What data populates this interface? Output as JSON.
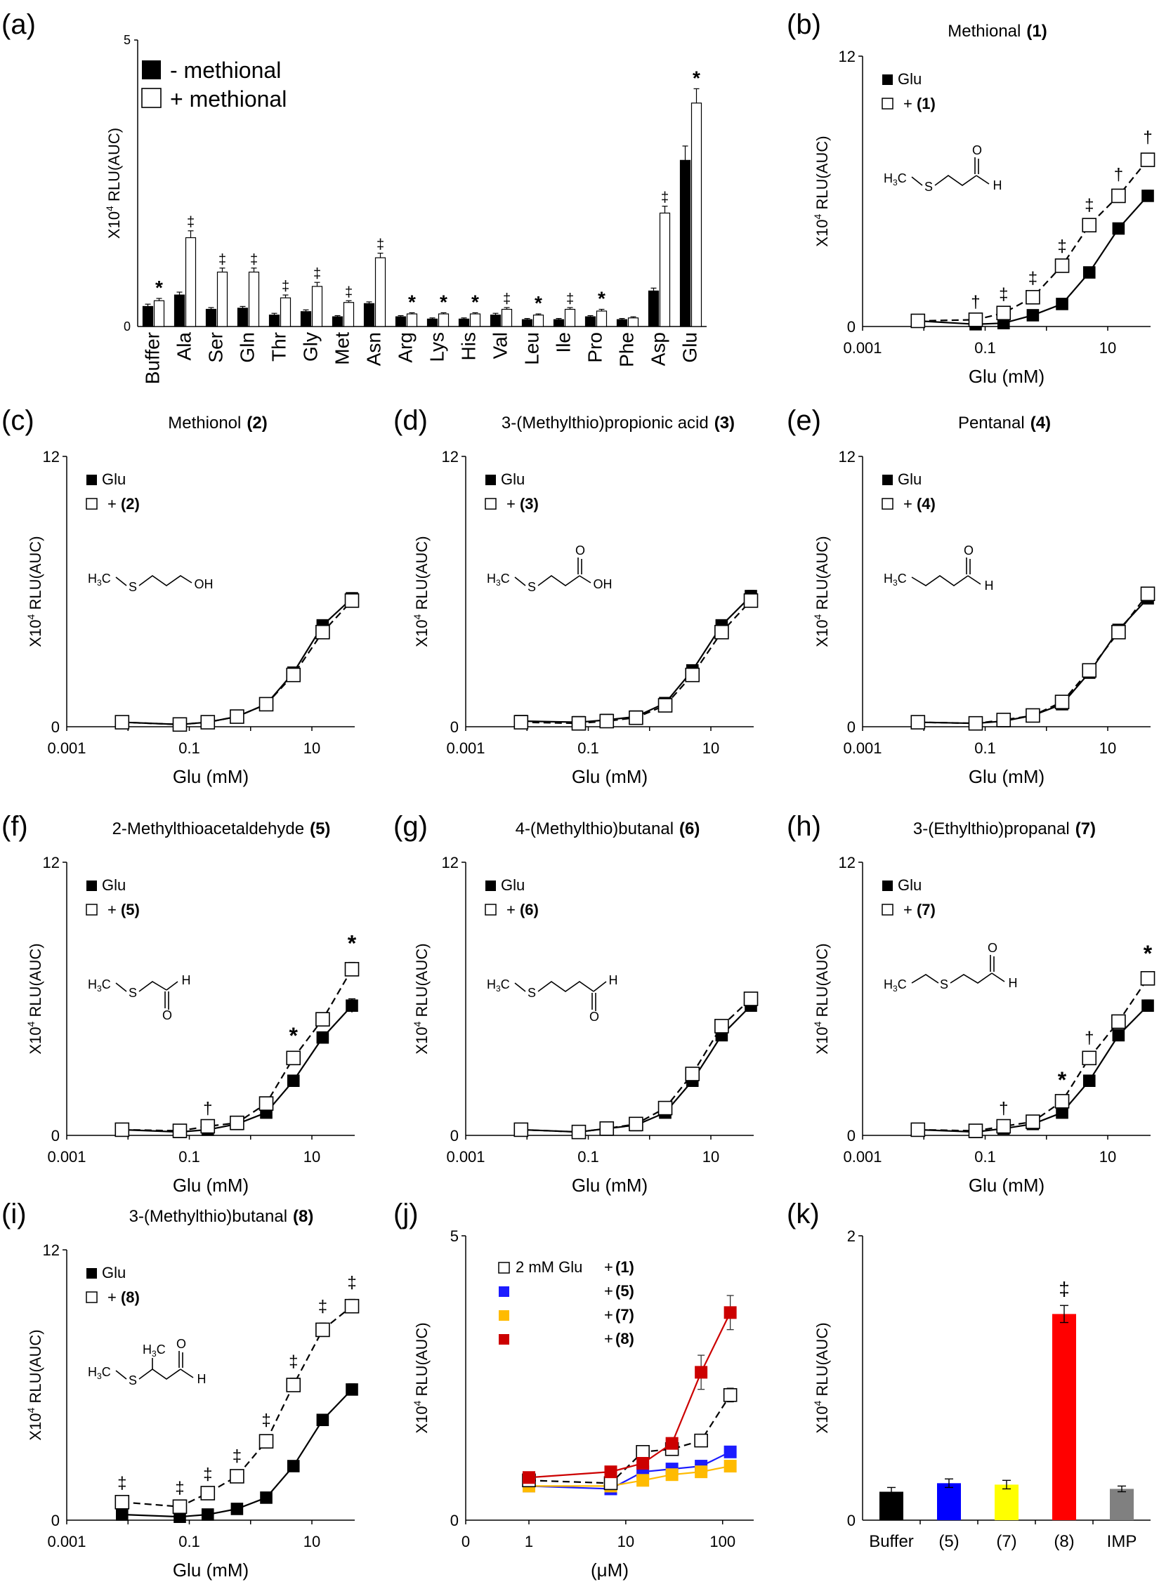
{
  "chart_data": [
    {
      "panel": "(a)",
      "type": "bar",
      "title": "",
      "ylabel": "X10⁴ RLU(AUC)",
      "ylim": [
        0,
        5
      ],
      "yticks": [
        0,
        5
      ],
      "categories": [
        "Buffer",
        "Ala",
        "Ser",
        "Gln",
        "Thr",
        "Gly",
        "Met",
        "Asn",
        "Arg",
        "Lys",
        "His",
        "Val",
        "Leu",
        "Ile",
        "Pro",
        "Phe",
        "Asp",
        "Glu"
      ],
      "series": [
        {
          "name": "- methional",
          "fill": "#000000",
          "values": [
            0.35,
            0.55,
            0.3,
            0.32,
            0.2,
            0.26,
            0.17,
            0.4,
            0.17,
            0.13,
            0.13,
            0.2,
            0.12,
            0.12,
            0.17,
            0.12,
            0.62,
            2.9
          ],
          "errors": [
            0.04,
            0.05,
            0.03,
            0.03,
            0.03,
            0.03,
            0.02,
            0.03,
            0.02,
            0.02,
            0.02,
            0.03,
            0.02,
            0.02,
            0.02,
            0.02,
            0.05,
            0.25
          ]
        },
        {
          "name": "+ methional",
          "fill": "#ffffff",
          "values": [
            0.45,
            1.55,
            0.95,
            0.95,
            0.5,
            0.7,
            0.42,
            1.2,
            0.22,
            0.22,
            0.22,
            0.3,
            0.2,
            0.3,
            0.27,
            0.15,
            1.98,
            3.9
          ],
          "errors": [
            0.04,
            0.12,
            0.07,
            0.07,
            0.05,
            0.07,
            0.03,
            0.08,
            0.02,
            0.02,
            0.02,
            0.03,
            0.02,
            0.03,
            0.03,
            0.02,
            0.12,
            0.25
          ]
        }
      ],
      "marks": [
        "*",
        "‡",
        "‡",
        "‡",
        "‡",
        "‡",
        "‡",
        "‡",
        "*",
        "*",
        "*",
        "‡",
        "*",
        "‡",
        "*",
        "",
        "‡",
        "*"
      ]
    },
    {
      "panel": "(b)",
      "type": "line",
      "title": "Methional",
      "title_num": "(1)",
      "xlabel": "Glu (mM)",
      "ylabel": "X10⁴ RLU(AUC)",
      "xscale": "log",
      "xlim": [
        0.001,
        50
      ],
      "xticks": [
        "0.001",
        "0.1",
        "10"
      ],
      "ylim": [
        0,
        12
      ],
      "yticks": [
        0,
        12
      ],
      "legend": [
        "Glu",
        "+ (1)"
      ],
      "x": [
        0.008,
        0.07,
        0.2,
        0.6,
        1.8,
        5,
        15,
        45
      ],
      "series": [
        {
          "name": "Glu",
          "values": [
            0.25,
            0.1,
            0.15,
            0.5,
            1.0,
            2.4,
            4.35,
            5.8
          ],
          "errors": [
            0.05,
            0.05,
            0.05,
            0.05,
            0.08,
            0.1,
            0.15,
            0.25
          ]
        },
        {
          "name": "+ (1)",
          "values": [
            0.25,
            0.3,
            0.6,
            1.3,
            2.7,
            4.5,
            5.8,
            7.4
          ],
          "errors": [
            0.05,
            0.05,
            0.08,
            0.1,
            0.12,
            0.15,
            0.2,
            0.25
          ]
        }
      ],
      "marks": [
        "",
        "†",
        "‡",
        "‡",
        "‡",
        "‡",
        "†",
        "†"
      ],
      "molecule": "methional"
    },
    {
      "panel": "(c)",
      "type": "line",
      "title": "Methionol",
      "title_num": "(2)",
      "xlabel": "Glu (mM)",
      "ylabel": "X10⁴ RLU(AUC)",
      "xscale": "log",
      "xlim": [
        0.001,
        50
      ],
      "xticks": [
        "0.001",
        "0.1",
        "10"
      ],
      "ylim": [
        0,
        12
      ],
      "yticks": [
        0,
        12
      ],
      "legend": [
        "Glu",
        "+ (2)"
      ],
      "x": [
        0.008,
        0.07,
        0.2,
        0.6,
        1.8,
        5,
        15,
        45
      ],
      "series": [
        {
          "name": "Glu",
          "values": [
            0.2,
            0.1,
            0.2,
            0.45,
            1.0,
            2.4,
            4.5,
            5.7
          ],
          "errors": [
            0.05,
            0.05,
            0.05,
            0.05,
            0.08,
            0.12,
            0.2,
            0.25
          ]
        },
        {
          "name": "+ (2)",
          "values": [
            0.2,
            0.1,
            0.2,
            0.45,
            1.0,
            2.3,
            4.2,
            5.6
          ],
          "errors": [
            0.05,
            0.05,
            0.05,
            0.05,
            0.08,
            0.12,
            0.2,
            0.25
          ]
        }
      ],
      "marks": [
        "",
        "",
        "",
        "",
        "",
        "",
        "",
        ""
      ],
      "molecule": "methionol"
    },
    {
      "panel": "(d)",
      "type": "line",
      "title": "3-(Methylthio)propionic acid",
      "title_num": "(3)",
      "xlabel": "Glu (mM)",
      "ylabel": "X10⁴ RLU(AUC)",
      "xscale": "log",
      "xlim": [
        0.001,
        50
      ],
      "xticks": [
        "0.001",
        "0.1",
        "10"
      ],
      "ylim": [
        0,
        12
      ],
      "yticks": [
        0,
        12
      ],
      "legend": [
        "Glu",
        "+ (3)"
      ],
      "x": [
        0.008,
        0.07,
        0.2,
        0.6,
        1.8,
        5,
        15,
        45
      ],
      "series": [
        {
          "name": "Glu",
          "values": [
            0.25,
            0.2,
            0.3,
            0.45,
            1.05,
            2.5,
            4.5,
            5.8
          ],
          "errors": [
            0.05,
            0.05,
            0.05,
            0.05,
            0.08,
            0.12,
            0.2,
            0.25
          ]
        },
        {
          "name": "+ (3)",
          "values": [
            0.2,
            0.15,
            0.25,
            0.4,
            0.95,
            2.3,
            4.2,
            5.6
          ],
          "errors": [
            0.05,
            0.05,
            0.05,
            0.05,
            0.08,
            0.12,
            0.2,
            0.25
          ]
        }
      ],
      "marks": [
        "",
        "",
        "",
        "",
        "",
        "",
        "",
        ""
      ],
      "molecule": "mtpa"
    },
    {
      "panel": "(e)",
      "type": "line",
      "title": "Pentanal",
      "title_num": "(4)",
      "xlabel": "Glu (mM)",
      "ylabel": "X10⁴ RLU(AUC)",
      "xscale": "log",
      "xlim": [
        0.001,
        50
      ],
      "xticks": [
        "0.001",
        "0.1",
        "10"
      ],
      "ylim": [
        0,
        12
      ],
      "yticks": [
        0,
        12
      ],
      "legend": [
        "Glu",
        "+ (4)"
      ],
      "x": [
        0.008,
        0.07,
        0.2,
        0.6,
        1.8,
        5,
        15,
        45
      ],
      "series": [
        {
          "name": "Glu",
          "values": [
            0.2,
            0.15,
            0.25,
            0.5,
            1.0,
            2.4,
            4.3,
            5.7
          ],
          "errors": [
            0.05,
            0.05,
            0.05,
            0.05,
            0.08,
            0.12,
            0.2,
            0.25
          ]
        },
        {
          "name": "+ (4)",
          "values": [
            0.2,
            0.15,
            0.3,
            0.5,
            1.1,
            2.5,
            4.2,
            5.9
          ],
          "errors": [
            0.05,
            0.05,
            0.05,
            0.05,
            0.08,
            0.12,
            0.2,
            0.25
          ]
        }
      ],
      "marks": [
        "",
        "",
        "",
        "",
        "",
        "",
        "",
        ""
      ],
      "molecule": "pentanal"
    },
    {
      "panel": "(f)",
      "type": "line",
      "title": "2-Methylthioacetaldehyde",
      "title_num": "(5)",
      "xlabel": "Glu (mM)",
      "ylabel": "X10⁴ RLU(AUC)",
      "xscale": "log",
      "xlim": [
        0.001,
        50
      ],
      "xticks": [
        "0.001",
        "0.1",
        "10"
      ],
      "ylim": [
        0,
        12
      ],
      "yticks": [
        0,
        12
      ],
      "legend": [
        "Glu",
        "+ (5)"
      ],
      "x": [
        0.008,
        0.07,
        0.2,
        0.6,
        1.8,
        5,
        15,
        45
      ],
      "series": [
        {
          "name": "Glu",
          "values": [
            0.25,
            0.15,
            0.25,
            0.5,
            1.0,
            2.4,
            4.3,
            5.7
          ],
          "errors": [
            0.05,
            0.05,
            0.05,
            0.05,
            0.08,
            0.12,
            0.2,
            0.3
          ]
        },
        {
          "name": "+ (5)",
          "values": [
            0.25,
            0.2,
            0.4,
            0.55,
            1.4,
            3.4,
            5.1,
            7.3
          ],
          "errors": [
            0.05,
            0.05,
            0.05,
            0.05,
            0.1,
            0.15,
            0.2,
            0.3
          ]
        }
      ],
      "marks": [
        "",
        "",
        "†",
        "",
        "",
        "*",
        "",
        "*"
      ],
      "molecule": "mta"
    },
    {
      "panel": "(g)",
      "type": "line",
      "title": "4-(Methylthio)butanal",
      "title_num": "(6)",
      "xlabel": "Glu (mM)",
      "ylabel": "X10⁴ RLU(AUC)",
      "xscale": "log",
      "xlim": [
        0.001,
        50
      ],
      "xticks": [
        "0.001",
        "0.1",
        "10"
      ],
      "ylim": [
        0,
        12
      ],
      "yticks": [
        0,
        12
      ],
      "legend": [
        "Glu",
        "+ (6)"
      ],
      "x": [
        0.008,
        0.07,
        0.2,
        0.6,
        1.8,
        5,
        15,
        45
      ],
      "series": [
        {
          "name": "Glu",
          "values": [
            0.25,
            0.15,
            0.3,
            0.45,
            1.0,
            2.4,
            4.4,
            5.7
          ],
          "errors": [
            0.05,
            0.05,
            0.05,
            0.05,
            0.08,
            0.12,
            0.2,
            0.25
          ]
        },
        {
          "name": "+ (6)",
          "values": [
            0.25,
            0.15,
            0.3,
            0.5,
            1.2,
            2.7,
            4.8,
            6.0
          ],
          "errors": [
            0.05,
            0.05,
            0.05,
            0.05,
            0.08,
            0.12,
            0.2,
            0.25
          ]
        }
      ],
      "marks": [
        "",
        "",
        "",
        "",
        "",
        "",
        "",
        ""
      ],
      "molecule": "mtbutanal"
    },
    {
      "panel": "(h)",
      "type": "line",
      "title": "3-(Ethylthio)propanal",
      "title_num": "(7)",
      "xlabel": "Glu (mM)",
      "ylabel": "X10⁴ RLU(AUC)",
      "xscale": "log",
      "xlim": [
        0.001,
        50
      ],
      "xticks": [
        "0.001",
        "0.1",
        "10"
      ],
      "ylim": [
        0,
        12
      ],
      "yticks": [
        0,
        12
      ],
      "legend": [
        "Glu",
        "+ (7)"
      ],
      "x": [
        0.008,
        0.07,
        0.2,
        0.6,
        1.8,
        5,
        15,
        45
      ],
      "series": [
        {
          "name": "Glu",
          "values": [
            0.25,
            0.15,
            0.3,
            0.5,
            1.0,
            2.4,
            4.4,
            5.7
          ],
          "errors": [
            0.05,
            0.05,
            0.05,
            0.05,
            0.08,
            0.12,
            0.2,
            0.25
          ]
        },
        {
          "name": "+ (7)",
          "values": [
            0.25,
            0.2,
            0.4,
            0.6,
            1.5,
            3.4,
            5.0,
            6.9
          ],
          "errors": [
            0.05,
            0.05,
            0.05,
            0.05,
            0.1,
            0.15,
            0.2,
            0.25
          ]
        }
      ],
      "marks": [
        "",
        "",
        "†",
        "",
        "*",
        "†",
        "",
        "*"
      ],
      "molecule": "etp"
    },
    {
      "panel": "(i)",
      "type": "line",
      "title": "3-(Methylthio)butanal",
      "title_num": "(8)",
      "xlabel": "Glu (mM)",
      "ylabel": "X10⁴ RLU(AUC)",
      "xscale": "log",
      "xlim": [
        0.001,
        50
      ],
      "xticks": [
        "0.001",
        "0.1",
        "10"
      ],
      "ylim": [
        0,
        12
      ],
      "yticks": [
        0,
        12
      ],
      "legend": [
        "Glu",
        "+ (8)"
      ],
      "x": [
        0.008,
        0.07,
        0.2,
        0.6,
        1.8,
        5,
        15,
        45
      ],
      "series": [
        {
          "name": "Glu",
          "values": [
            0.25,
            0.15,
            0.25,
            0.5,
            1.0,
            2.4,
            4.45,
            5.8
          ],
          "errors": [
            0.05,
            0.05,
            0.05,
            0.05,
            0.08,
            0.12,
            0.2,
            0.25
          ]
        },
        {
          "name": "+ (8)",
          "values": [
            0.8,
            0.6,
            1.2,
            1.95,
            3.5,
            6.0,
            8.45,
            9.5
          ],
          "errors": [
            0.1,
            0.08,
            0.1,
            0.15,
            0.2,
            0.3,
            0.3,
            0.3
          ]
        }
      ],
      "marks": [
        "‡",
        "‡",
        "‡",
        "‡",
        "‡",
        "‡",
        "‡",
        "‡"
      ],
      "molecule": "mtbutanal3"
    },
    {
      "panel": "(j)",
      "type": "line",
      "title": "",
      "xlabel": "(μM)",
      "ylabel": "X10⁴ RLU(AUC)",
      "xscale": "log",
      "xticks": [
        "0",
        "1",
        "10",
        "100"
      ],
      "ylim": [
        0,
        5
      ],
      "yticks": [
        0,
        5
      ],
      "x": [
        1,
        7,
        15,
        30,
        60,
        120
      ],
      "series": [
        {
          "name": "2 mM Glu + (1)",
          "label_num": "(1)",
          "color": "#ffffff",
          "values": [
            0.7,
            0.65,
            1.2,
            1.25,
            1.4,
            2.2
          ],
          "errors": [
            0.05,
            0.05,
            0.08,
            0.08,
            0.1,
            0.12
          ]
        },
        {
          "name": "+ (5)",
          "label_num": "(5)",
          "color": "#1c1cff",
          "values": [
            0.6,
            0.55,
            0.85,
            0.9,
            0.95,
            1.2
          ],
          "errors": [
            0.05,
            0.05,
            0.06,
            0.06,
            0.06,
            0.08
          ]
        },
        {
          "name": "+ (7)",
          "label_num": "(7)",
          "color": "#ffbb00",
          "values": [
            0.6,
            0.6,
            0.7,
            0.8,
            0.85,
            0.95
          ],
          "errors": [
            0.05,
            0.05,
            0.06,
            0.06,
            0.06,
            0.08
          ]
        },
        {
          "name": "+ (8)",
          "label_num": "(8)",
          "color": "#cc0000",
          "values": [
            0.75,
            0.85,
            1.0,
            1.35,
            2.6,
            3.65
          ],
          "errors": [
            0.05,
            0.06,
            0.08,
            0.1,
            0.3,
            0.3
          ]
        }
      ],
      "legend_prefix": "2 mM Glu",
      "legend_plus": "+"
    },
    {
      "panel": "(k)",
      "type": "bar",
      "title": "",
      "ylabel": "X10⁴ RLU(AUC)",
      "ylim": [
        0,
        2
      ],
      "yticks": [
        0,
        2
      ],
      "categories": [
        "Buffer",
        "(5)",
        "(7)",
        "(8)",
        "IMP"
      ],
      "values": [
        0.2,
        0.26,
        0.25,
        1.45,
        0.22
      ],
      "errors": [
        0.03,
        0.03,
        0.03,
        0.06,
        0.02
      ],
      "colors": [
        "#000000",
        "#0000ff",
        "#ffff00",
        "#ff0000",
        "#808080"
      ],
      "marks": [
        "",
        "",
        "",
        "‡",
        ""
      ]
    }
  ]
}
